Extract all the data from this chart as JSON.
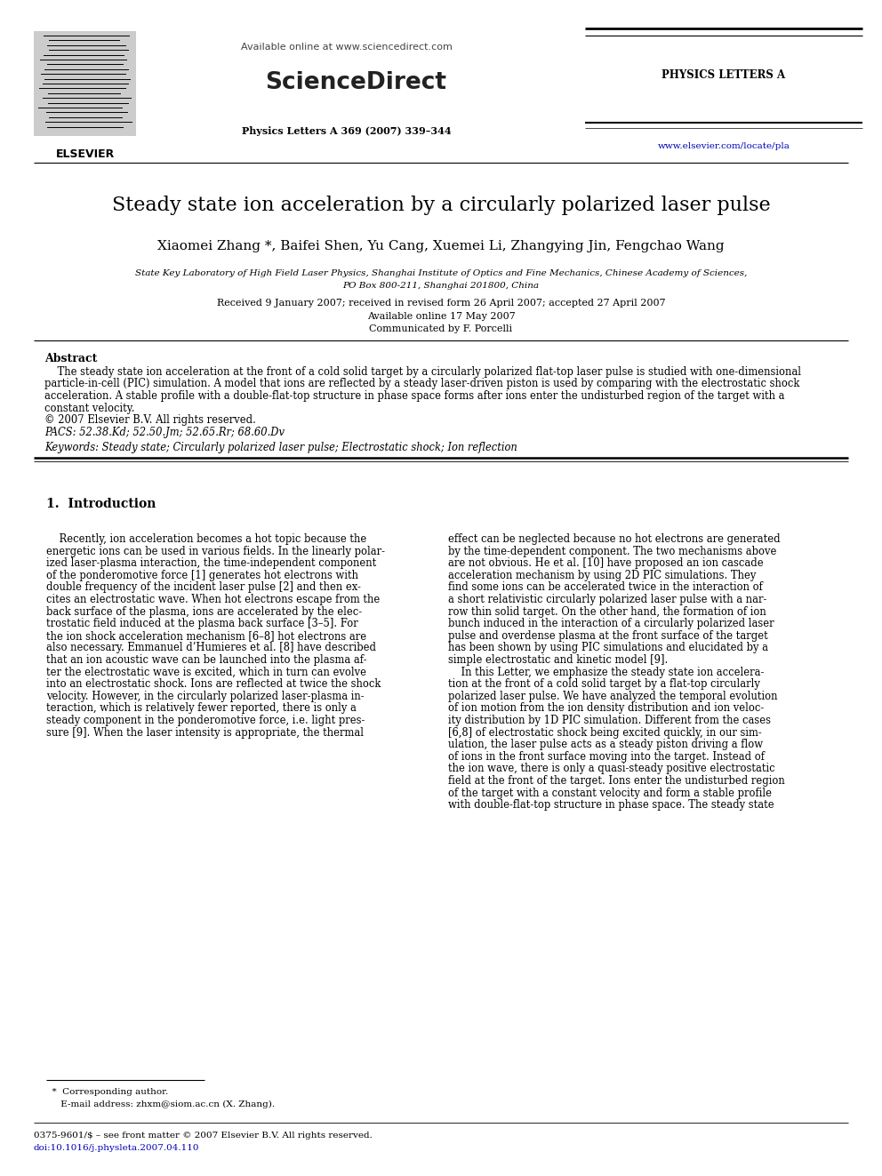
{
  "title": "Steady state ion acceleration by a circularly polarized laser pulse",
  "authors": "Xiaomei Zhang *, Baifei Shen, Yu Cang, Xuemei Li, Zhangying Jin, Fengchao Wang",
  "affiliation1": "State Key Laboratory of High Field Laser Physics, Shanghai Institute of Optics and Fine Mechanics, Chinese Academy of Sciences,",
  "affiliation2": "PO Box 800-211, Shanghai 201800, China",
  "received": "Received 9 January 2007; received in revised form 26 April 2007; accepted 27 April 2007",
  "available": "Available online 17 May 2007",
  "communicated": "Communicated by F. Porcelli",
  "journal_header": "Available online at www.sciencedirect.com",
  "journal_name": "ScienceDirect",
  "journal_title": "PHYSICS LETTERS A",
  "journal_info": "Physics Letters A 369 (2007) 339–344",
  "journal_url": "www.elsevier.com/locate/pla",
  "elsevier": "ELSEVIER",
  "abstract_title": "Abstract",
  "abstract_line1": "    The steady state ion acceleration at the front of a cold solid target by a circularly polarized flat-top laser pulse is studied with one-dimensional",
  "abstract_line2": "particle-in-cell (PIC) simulation. A model that ions are reflected by a steady laser-driven piston is used by comparing with the electrostatic shock",
  "abstract_line3": "acceleration. A stable profile with a double-flat-top structure in phase space forms after ions enter the undisturbed region of the target with a",
  "abstract_line4": "constant velocity.",
  "abstract_line5": "© 2007 Elsevier B.V. All rights reserved.",
  "pacs": "PACS: 52.38.Kd; 52.50.Jm; 52.65.Rr; 68.60.Dv",
  "keywords": "Keywords: Steady state; Circularly polarized laser pulse; Electrostatic shock; Ion reflection",
  "section1_title": "1.  Introduction",
  "col1_lines": [
    "    Recently, ion acceleration becomes a hot topic because the",
    "energetic ions can be used in various fields. In the linearly polar-",
    "ized laser-plasma interaction, the time-independent component",
    "of the ponderomotive force [1] generates hot electrons with",
    "double frequency of the incident laser pulse [2] and then ex-",
    "cites an electrostatic wave. When hot electrons escape from the",
    "back surface of the plasma, ions are accelerated by the elec-",
    "trostatic field induced at the plasma back surface [3–5]. For",
    "the ion shock acceleration mechanism [6–8] hot electrons are",
    "also necessary. Emmanuel d’Humieres et al. [8] have described",
    "that an ion acoustic wave can be launched into the plasma af-",
    "ter the electrostatic wave is excited, which in turn can evolve",
    "into an electrostatic shock. Ions are reflected at twice the shock",
    "velocity. However, in the circularly polarized laser-plasma in-",
    "teraction, which is relatively fewer reported, there is only a",
    "steady component in the ponderomotive force, i.e. light pres-",
    "sure [9]. When the laser intensity is appropriate, the thermal"
  ],
  "col2_lines": [
    "effect can be neglected because no hot electrons are generated",
    "by the time-dependent component. The two mechanisms above",
    "are not obvious. He et al. [10] have proposed an ion cascade",
    "acceleration mechanism by using 2D PIC simulations. They",
    "find some ions can be accelerated twice in the interaction of",
    "a short relativistic circularly polarized laser pulse with a nar-",
    "row thin solid target. On the other hand, the formation of ion",
    "bunch induced in the interaction of a circularly polarized laser",
    "pulse and overdense plasma at the front surface of the target",
    "has been shown by using PIC simulations and elucidated by a",
    "simple electrostatic and kinetic model [9].",
    "    In this Letter, we emphasize the steady state ion accelera-",
    "tion at the front of a cold solid target by a flat-top circularly",
    "polarized laser pulse. We have analyzed the temporal evolution",
    "of ion motion from the ion density distribution and ion veloc-",
    "ity distribution by 1D PIC simulation. Different from the cases",
    "[6,8] of electrostatic shock being excited quickly, in our sim-",
    "ulation, the laser pulse acts as a steady piston driving a flow",
    "of ions in the front surface moving into the target. Instead of",
    "the ion wave, there is only a quasi-steady positive electrostatic",
    "field at the front of the target. Ions enter the undisturbed region",
    "of the target with a constant velocity and form a stable profile",
    "with double-flat-top structure in phase space. The steady state"
  ],
  "footnote1": "  *  Corresponding author.",
  "footnote2": "     E-mail address: zhxm@siom.ac.cn (X. Zhang).",
  "footnote3": "0375-9601/$ – see front matter © 2007 Elsevier B.V. All rights reserved.",
  "footnote4": "doi:10.1016/j.physleta.2007.04.110",
  "bg_color": "#ffffff",
  "text_color": "#000000",
  "link_color": "#0000bb",
  "header_line_color": "#000000"
}
